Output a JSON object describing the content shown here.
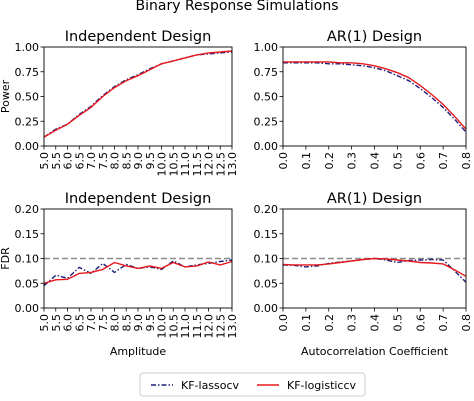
{
  "figure_title": "Binary Response Simulations",
  "colors": {
    "lasso": "#1f1f7a",
    "logistic": "#e8191c",
    "reference": "#8c8c8c",
    "axis": "#000000"
  },
  "legend": {
    "placement": "bottom-center",
    "items": [
      "KF-lassocv",
      "KF-logisticcv"
    ]
  },
  "chart_data": [
    {
      "id": "top-left",
      "type": "line",
      "title": "Independent Design",
      "xlabel": "",
      "ylabel": "Power",
      "xlim": [
        5.0,
        13.0
      ],
      "ylim": [
        0.0,
        1.0
      ],
      "xticks": [
        "5.0",
        "5.5",
        "6.0",
        "6.5",
        "7.0",
        "7.5",
        "8.0",
        "8.5",
        "9.0",
        "9.5",
        "10.0",
        "10.5",
        "11.0",
        "11.5",
        "12.0",
        "12.5",
        "13.0"
      ],
      "yticks": [
        "0.00",
        "0.25",
        "0.50",
        "0.75",
        "1.00"
      ],
      "grid": false,
      "x": [
        5.0,
        5.5,
        6.0,
        6.5,
        7.0,
        7.5,
        8.0,
        8.5,
        9.0,
        9.5,
        10.0,
        10.5,
        11.0,
        11.5,
        12.0,
        12.5,
        13.0
      ],
      "series": [
        {
          "name": "KF-lassocv",
          "values": [
            0.09,
            0.17,
            0.22,
            0.32,
            0.4,
            0.51,
            0.6,
            0.67,
            0.72,
            0.78,
            0.83,
            0.86,
            0.89,
            0.92,
            0.93,
            0.94,
            0.95
          ]
        },
        {
          "name": "KF-logisticcv",
          "values": [
            0.09,
            0.16,
            0.22,
            0.31,
            0.39,
            0.5,
            0.59,
            0.66,
            0.71,
            0.77,
            0.83,
            0.86,
            0.89,
            0.92,
            0.94,
            0.95,
            0.96
          ]
        }
      ]
    },
    {
      "id": "top-right",
      "type": "line",
      "title": "AR(1) Design",
      "xlabel": "",
      "ylabel": "",
      "xlim": [
        0.0,
        0.8
      ],
      "ylim": [
        0.0,
        1.0
      ],
      "xticks": [
        "0.0",
        "0.1",
        "0.2",
        "0.3",
        "0.4",
        "0.5",
        "0.6",
        "0.7",
        "0.8"
      ],
      "yticks": [
        "0.00",
        "0.25",
        "0.50",
        "0.75",
        "1.00"
      ],
      "grid": false,
      "x": [
        0.0,
        0.05,
        0.1,
        0.15,
        0.2,
        0.25,
        0.3,
        0.35,
        0.4,
        0.45,
        0.5,
        0.55,
        0.6,
        0.65,
        0.7,
        0.75,
        0.8
      ],
      "series": [
        {
          "name": "KF-lassocv",
          "values": [
            0.84,
            0.84,
            0.84,
            0.84,
            0.83,
            0.83,
            0.82,
            0.81,
            0.79,
            0.76,
            0.71,
            0.66,
            0.58,
            0.49,
            0.39,
            0.27,
            0.14
          ]
        },
        {
          "name": "KF-logisticcv",
          "values": [
            0.85,
            0.85,
            0.85,
            0.85,
            0.85,
            0.84,
            0.84,
            0.83,
            0.81,
            0.78,
            0.74,
            0.69,
            0.61,
            0.52,
            0.42,
            0.3,
            0.17
          ]
        }
      ]
    },
    {
      "id": "bottom-left",
      "type": "line",
      "title": "Independent Design",
      "xlabel": "Amplitude",
      "ylabel": "FDR",
      "xlim": [
        5.0,
        13.0
      ],
      "ylim": [
        0.0,
        0.2
      ],
      "xticks": [
        "5.0",
        "5.5",
        "6.0",
        "6.5",
        "7.0",
        "7.5",
        "8.0",
        "8.5",
        "9.0",
        "9.5",
        "10.0",
        "10.5",
        "11.0",
        "11.5",
        "12.0",
        "12.5",
        "13.0"
      ],
      "yticks": [
        "0.00",
        "0.05",
        "0.10",
        "0.15",
        "0.20"
      ],
      "grid": false,
      "reference_line": 0.1,
      "x": [
        5.0,
        5.5,
        6.0,
        6.5,
        7.0,
        7.5,
        8.0,
        8.5,
        9.0,
        9.5,
        10.0,
        10.5,
        11.0,
        11.5,
        12.0,
        12.5,
        13.0
      ],
      "series": [
        {
          "name": "KF-lassocv",
          "values": [
            0.045,
            0.066,
            0.06,
            0.082,
            0.07,
            0.09,
            0.072,
            0.088,
            0.08,
            0.083,
            0.078,
            0.095,
            0.083,
            0.087,
            0.09,
            0.094,
            0.097
          ]
        },
        {
          "name": "KF-logisticcv",
          "values": [
            0.05,
            0.057,
            0.058,
            0.07,
            0.072,
            0.078,
            0.092,
            0.085,
            0.08,
            0.085,
            0.08,
            0.092,
            0.083,
            0.085,
            0.093,
            0.087,
            0.094
          ]
        }
      ]
    },
    {
      "id": "bottom-right",
      "type": "line",
      "title": "AR(1) Design",
      "xlabel": "Autocorrelation Coefficient",
      "ylabel": "",
      "xlim": [
        0.0,
        0.8
      ],
      "ylim": [
        0.0,
        0.2
      ],
      "xticks": [
        "0.0",
        "0.1",
        "0.2",
        "0.3",
        "0.4",
        "0.5",
        "0.6",
        "0.7",
        "0.8"
      ],
      "yticks": [
        "0.00",
        "0.05",
        "0.10",
        "0.15",
        "0.20"
      ],
      "grid": false,
      "reference_line": 0.1,
      "x": [
        0.0,
        0.05,
        0.1,
        0.15,
        0.2,
        0.25,
        0.3,
        0.35,
        0.4,
        0.45,
        0.5,
        0.55,
        0.6,
        0.65,
        0.7,
        0.75,
        0.8
      ],
      "series": [
        {
          "name": "KF-lassocv",
          "values": [
            0.087,
            0.086,
            0.083,
            0.085,
            0.09,
            0.093,
            0.095,
            0.098,
            0.1,
            0.097,
            0.092,
            0.096,
            0.097,
            0.098,
            0.097,
            0.075,
            0.052
          ]
        },
        {
          "name": "KF-logisticcv",
          "values": [
            0.088,
            0.087,
            0.087,
            0.087,
            0.089,
            0.092,
            0.095,
            0.098,
            0.1,
            0.099,
            0.097,
            0.095,
            0.092,
            0.091,
            0.089,
            0.077,
            0.064
          ]
        }
      ]
    }
  ]
}
